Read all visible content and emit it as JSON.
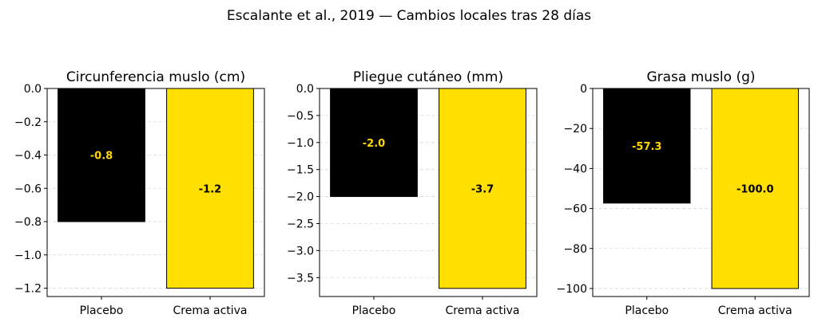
{
  "figure": {
    "title": "Escalante et al., 2019 — Cambios locales tras 28 días",
    "colors": {
      "placebo": "#000000",
      "active": "#FFE000",
      "label_on_dark": "#FFD700",
      "label_on_light": "#000000"
    }
  },
  "chart_data": [
    {
      "type": "bar",
      "title": "Circunferencia muslo (cm)",
      "categories": [
        "Placebo",
        "Crema activa"
      ],
      "values": [
        -0.8,
        -1.2
      ],
      "value_labels": [
        "-0.8",
        "-1.2"
      ],
      "ylim": [
        -1.25,
        0.0
      ],
      "yticks": [
        0.0,
        -0.2,
        -0.4,
        -0.6,
        -0.8,
        -1.0,
        -1.2
      ],
      "ytick_labels": [
        "0.0",
        "−0.2",
        "−0.4",
        "−0.6",
        "−0.8",
        "−1.0",
        "−1.2"
      ],
      "grid": "y-dashed",
      "xlabel": "",
      "ylabel": ""
    },
    {
      "type": "bar",
      "title": "Pliegue cutáneo (mm)",
      "categories": [
        "Placebo",
        "Crema activa"
      ],
      "values": [
        -2.0,
        -3.7
      ],
      "value_labels": [
        "-2.0",
        "-3.7"
      ],
      "ylim": [
        -3.85,
        0.0
      ],
      "yticks": [
        0.0,
        -0.5,
        -1.0,
        -1.5,
        -2.0,
        -2.5,
        -3.0,
        -3.5
      ],
      "ytick_labels": [
        "0.0",
        "−0.5",
        "−1.0",
        "−1.5",
        "−2.0",
        "−2.5",
        "−3.0",
        "−3.5"
      ],
      "grid": "y-dashed",
      "xlabel": "",
      "ylabel": ""
    },
    {
      "type": "bar",
      "title": "Grasa muslo (g)",
      "categories": [
        "Placebo",
        "Crema activa"
      ],
      "values": [
        -57.3,
        -100.0
      ],
      "value_labels": [
        "-57.3",
        "-100.0"
      ],
      "ylim": [
        -104,
        0
      ],
      "yticks": [
        0,
        -20,
        -40,
        -60,
        -80,
        -100
      ],
      "ytick_labels": [
        "0",
        "−20",
        "−40",
        "−60",
        "−80",
        "−100"
      ],
      "grid": "y-dashed",
      "xlabel": "",
      "ylabel": ""
    }
  ]
}
